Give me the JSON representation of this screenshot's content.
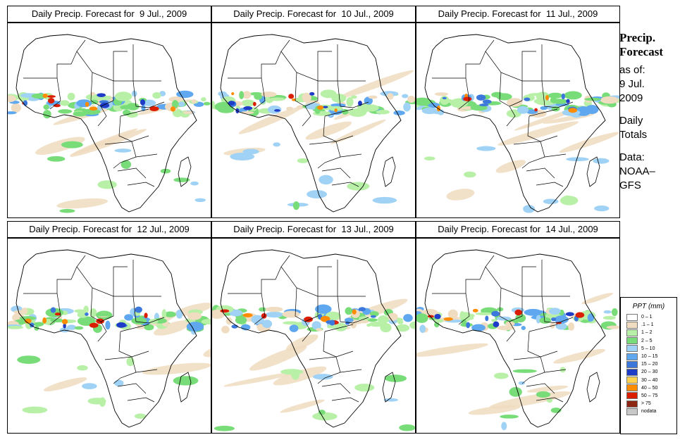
{
  "panels": [
    {
      "title": "Daily Precip. Forecast for  9 Jul., 2009",
      "profile": "a"
    },
    {
      "title": "Daily Precip. Forecast for  10 Jul., 2009",
      "profile": "b"
    },
    {
      "title": "Daily Precip. Forecast for  11 Jul., 2009",
      "profile": "c"
    },
    {
      "title": "Daily Precip. Forecast for  12 Jul., 2009",
      "profile": "d"
    },
    {
      "title": "Daily Precip. Forecast for  13 Jul., 2009",
      "profile": "e"
    },
    {
      "title": "Daily Precip. Forecast for  14 Jul., 2009",
      "profile": "f"
    }
  ],
  "side": {
    "title_line1": "Precip.",
    "title_line2": "Forecast",
    "asof_line1": "as of:",
    "asof_line2": "9 Jul.",
    "asof_line3": "2009",
    "totals_line1": "Daily",
    "totals_line2": "Totals",
    "data_line1": "Data:",
    "data_line2": "NOAA–",
    "data_line3": "GFS"
  },
  "legend": {
    "title": "PPT (mm)",
    "items": [
      {
        "label": "0 – 1",
        "color": "#ffffff"
      },
      {
        "label": ".1 – 1",
        "color": "#f0dcc0"
      },
      {
        "label": "1 – 2",
        "color": "#b9f0a8"
      },
      {
        "label": "2 – 5",
        "color": "#78dc78"
      },
      {
        "label": "5 – 10",
        "color": "#a0d2f5"
      },
      {
        "label": "10 – 15",
        "color": "#5fa8f0"
      },
      {
        "label": "15 – 20",
        "color": "#3c78dc"
      },
      {
        "label": "20 – 30",
        "color": "#1e3cc8"
      },
      {
        "label": "30 – 40",
        "color": "#ffd250"
      },
      {
        "label": "40 – 50",
        "color": "#ff8c00"
      },
      {
        "label": "50 – 75",
        "color": "#dc1e00"
      },
      {
        "label": "> 75",
        "color": "#8c2814"
      },
      {
        "label": "nodata",
        "color": "#c8c8c8"
      }
    ]
  }
}
